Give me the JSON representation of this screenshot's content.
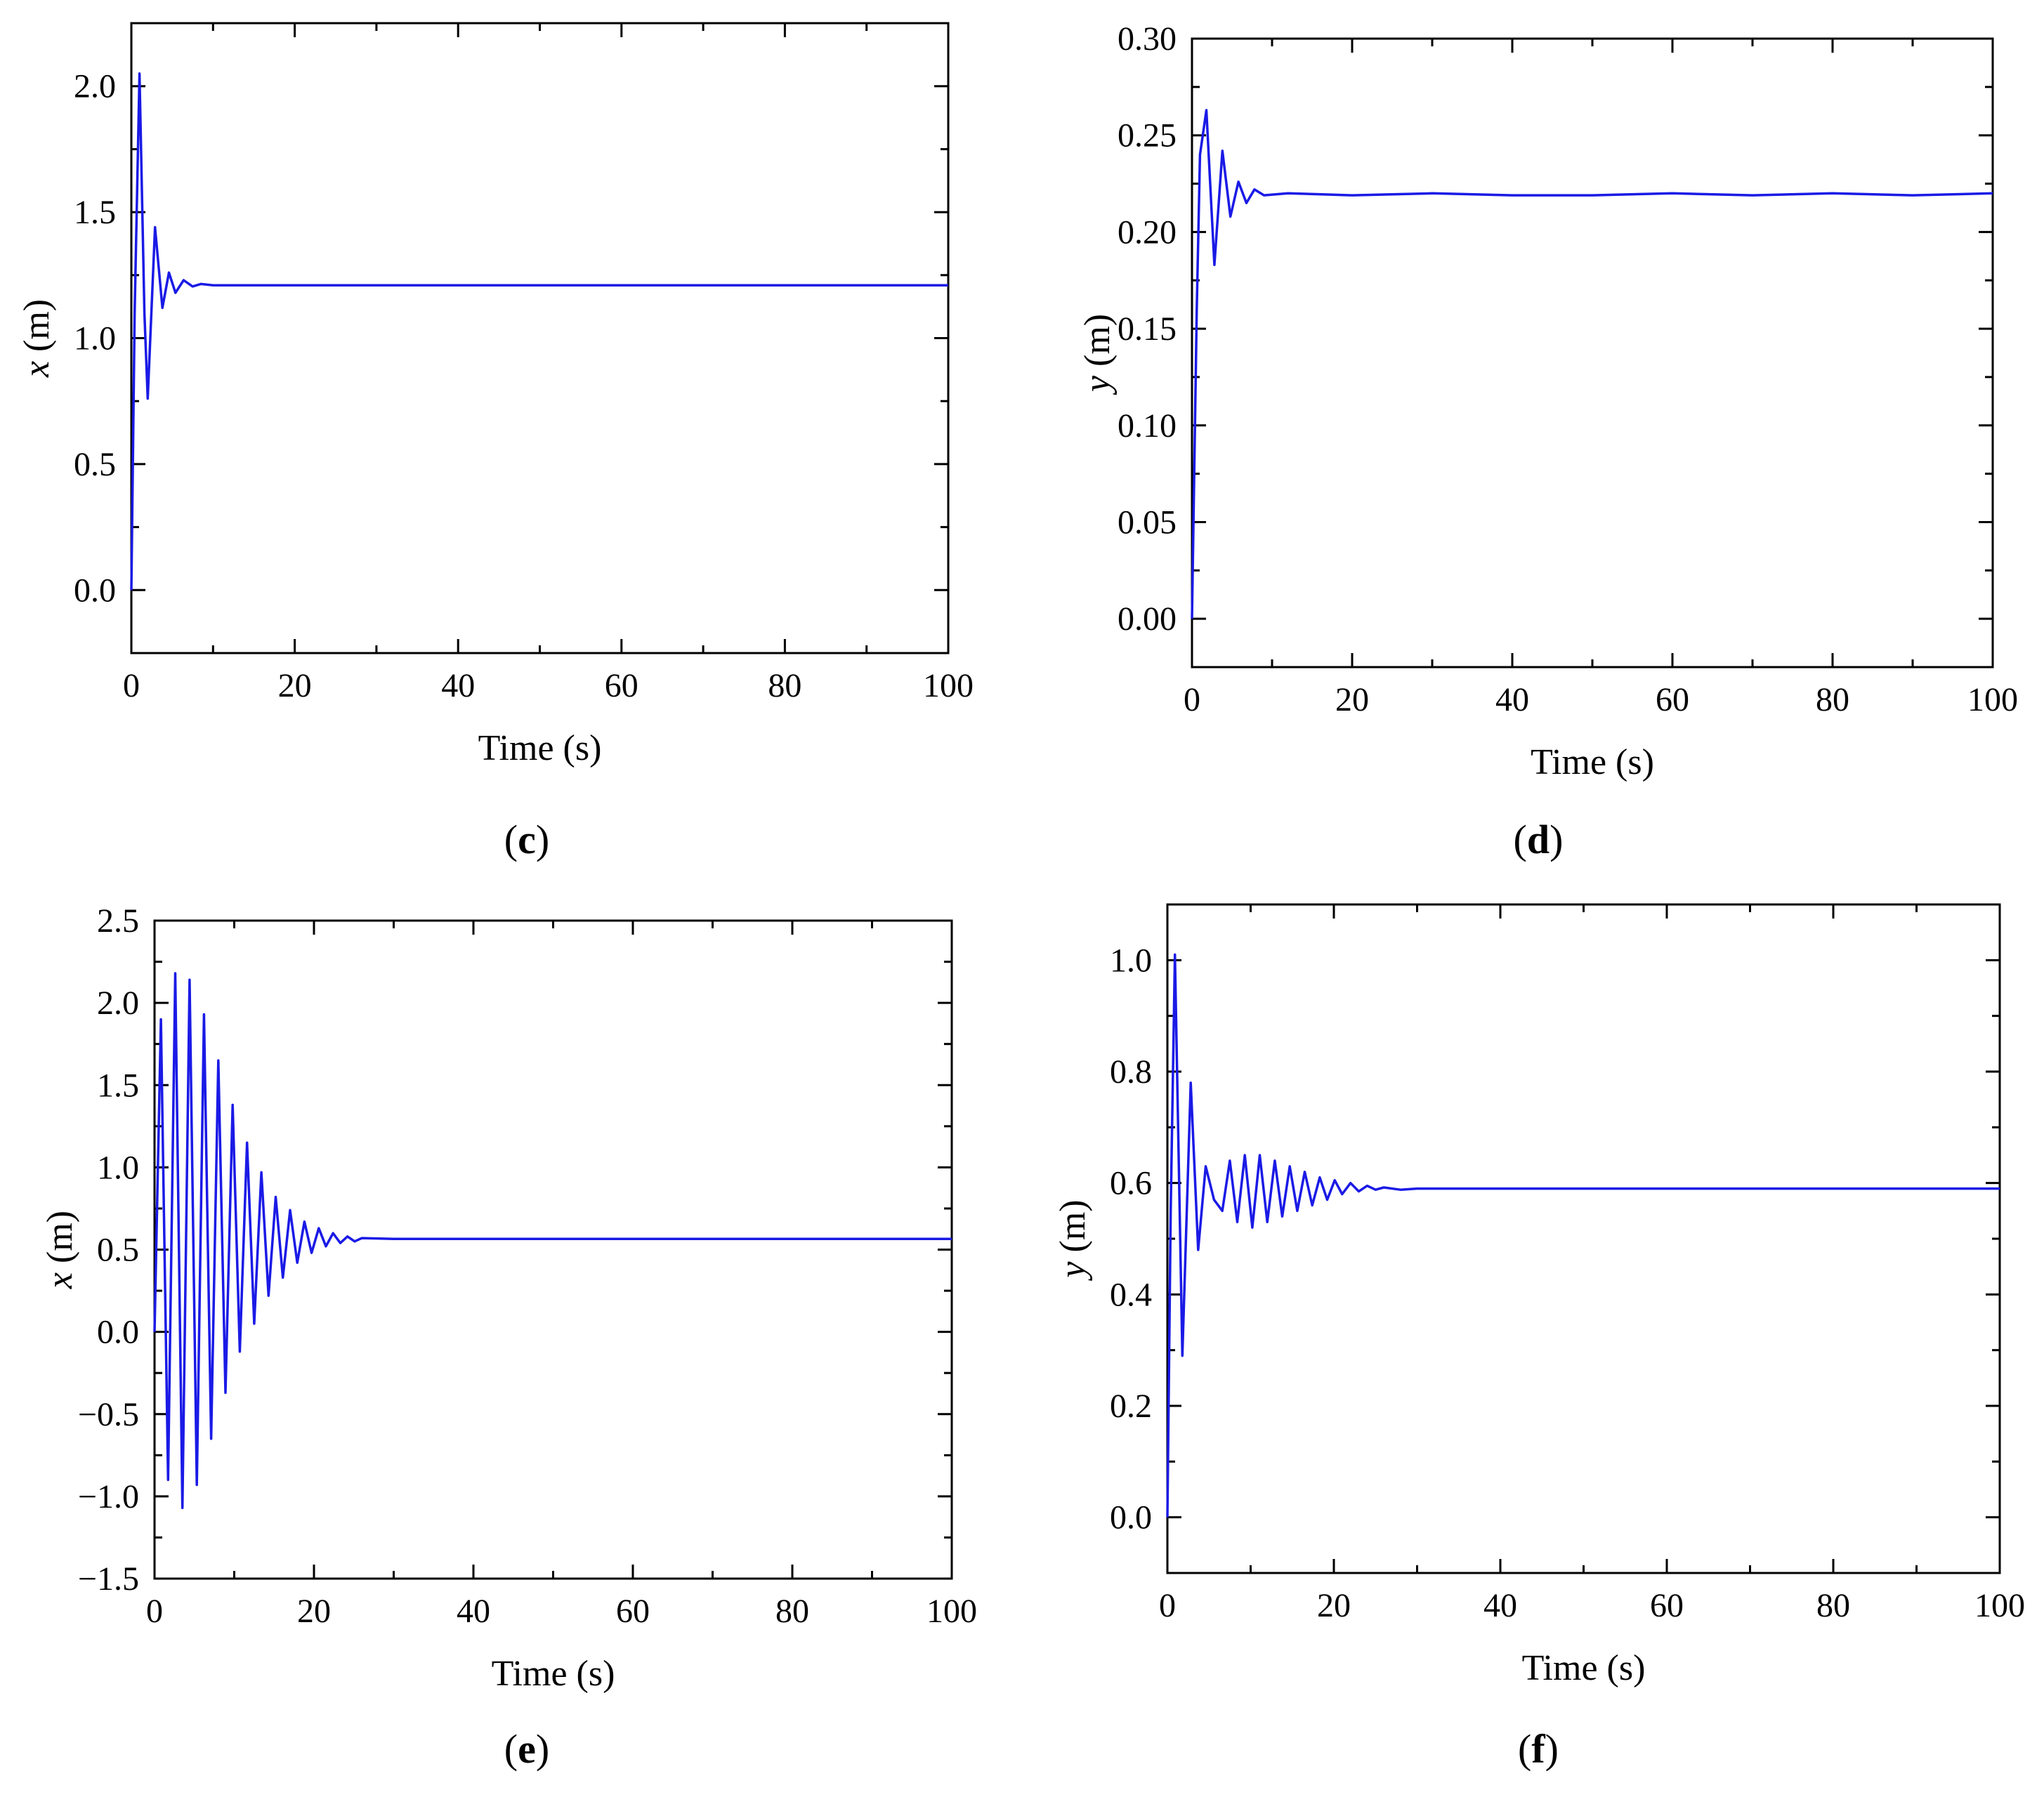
{
  "line_color": "#1a1ae6",
  "chart_data": [
    {
      "id": "c",
      "type": "line",
      "panel_label": "c",
      "xlabel": "Time  (s)",
      "ylabel_var": "x",
      "ylabel_unit": " (m)",
      "xlim": [
        0,
        100
      ],
      "ylim": [
        -0.25,
        2.25
      ],
      "xticks": [
        0,
        20,
        40,
        60,
        80,
        100
      ],
      "xticklabels": [
        "0",
        "20",
        "40",
        "60",
        "80",
        "100"
      ],
      "yticks": [
        0.0,
        0.5,
        1.0,
        1.5,
        2.0
      ],
      "yticklabels": [
        "0.0",
        "0.5",
        "1.0",
        "1.5",
        "2.0"
      ],
      "grid": false,
      "series": [
        {
          "x": [
            0,
            0.4,
            1.0,
            1.6,
            2.0,
            2.9,
            3.8,
            4.6,
            5.4,
            6.4,
            7.5,
            8.5,
            10,
            20,
            30,
            40,
            50,
            60,
            70,
            80,
            90,
            100
          ],
          "values": [
            0,
            1.1,
            2.05,
            1.1,
            0.76,
            1.44,
            1.12,
            1.26,
            1.18,
            1.23,
            1.205,
            1.215,
            1.21,
            1.21,
            1.21,
            1.21,
            1.21,
            1.21,
            1.21,
            1.21,
            1.21,
            1.21
          ]
        }
      ]
    },
    {
      "id": "d",
      "type": "line",
      "panel_label": "d",
      "xlabel": "Time  (s)",
      "ylabel_var": "y",
      "ylabel_unit": " (m)",
      "xlim": [
        0,
        100
      ],
      "ylim": [
        -0.025,
        0.3
      ],
      "xticks": [
        0,
        20,
        40,
        60,
        80,
        100
      ],
      "xticklabels": [
        "0",
        "20",
        "40",
        "60",
        "80",
        "100"
      ],
      "yticks": [
        0.0,
        0.05,
        0.1,
        0.15,
        0.2,
        0.25,
        0.3
      ],
      "yticklabels": [
        "0.00",
        "0.05",
        "0.10",
        "0.15",
        "0.20",
        "0.25",
        "0.30"
      ],
      "grid": false,
      "series": [
        {
          "x": [
            0,
            0.6,
            1.0,
            1.8,
            2.8,
            3.8,
            4.8,
            5.8,
            6.8,
            7.8,
            9,
            12,
            20,
            30,
            40,
            50,
            60,
            70,
            80,
            90,
            100
          ],
          "values": [
            0,
            0.16,
            0.24,
            0.263,
            0.183,
            0.242,
            0.208,
            0.226,
            0.215,
            0.222,
            0.219,
            0.22,
            0.219,
            0.22,
            0.219,
            0.219,
            0.22,
            0.219,
            0.22,
            0.219,
            0.22
          ]
        }
      ]
    },
    {
      "id": "e",
      "type": "line",
      "panel_label": "e",
      "xlabel": "Time  (s)",
      "ylabel_var": "x",
      "ylabel_unit": " (m)",
      "xlim": [
        0,
        100
      ],
      "ylim": [
        -1.5,
        2.5
      ],
      "xticks": [
        0,
        20,
        40,
        60,
        80,
        100
      ],
      "xticklabels": [
        "0",
        "20",
        "40",
        "60",
        "80",
        "100"
      ],
      "yticks": [
        -1.5,
        -1.0,
        -0.5,
        0.0,
        0.5,
        1.0,
        1.5,
        2.0,
        2.5
      ],
      "yticklabels": [
        "−1.5",
        "−1.0",
        "−0.5",
        "0.0",
        "0.5",
        "1.0",
        "1.5",
        "2.0",
        "2.5"
      ],
      "grid": false,
      "series": [
        {
          "x": [
            0,
            0.8,
            1.7,
            2.6,
            3.5,
            4.4,
            5.3,
            6.2,
            7.1,
            8.0,
            8.9,
            9.8,
            10.7,
            11.6,
            12.5,
            13.4,
            14.3,
            15.2,
            16.1,
            17.0,
            17.9,
            18.8,
            19.7,
            20.6,
            21.5,
            22.4,
            23.3,
            24.2,
            25.1,
            26,
            30,
            40,
            50,
            60,
            70,
            80,
            90,
            100
          ],
          "values": [
            0,
            1.9,
            -0.9,
            2.18,
            -1.07,
            2.14,
            -0.93,
            1.93,
            -0.65,
            1.65,
            -0.37,
            1.38,
            -0.12,
            1.15,
            0.05,
            0.97,
            0.22,
            0.82,
            0.33,
            0.74,
            0.42,
            0.67,
            0.48,
            0.63,
            0.52,
            0.6,
            0.54,
            0.58,
            0.55,
            0.57,
            0.565,
            0.565,
            0.565,
            0.565,
            0.565,
            0.565,
            0.565,
            0.565
          ]
        }
      ]
    },
    {
      "id": "f",
      "type": "line",
      "panel_label": "f",
      "xlabel": "Time  (s)",
      "ylabel_var": "y",
      "ylabel_unit": " (m)",
      "xlim": [
        0,
        100
      ],
      "ylim": [
        -0.1,
        1.1
      ],
      "xticks": [
        0,
        20,
        40,
        60,
        80,
        100
      ],
      "xticklabels": [
        "0",
        "20",
        "40",
        "60",
        "80",
        "100"
      ],
      "yticks": [
        0.0,
        0.2,
        0.4,
        0.6,
        0.8,
        1.0
      ],
      "yticklabels": [
        "0.0",
        "0.2",
        "0.4",
        "0.6",
        "0.8",
        "1.0"
      ],
      "grid": false,
      "series": [
        {
          "x": [
            0,
            0.4,
            0.9,
            1.8,
            2.8,
            3.7,
            4.6,
            5.6,
            6.6,
            7.5,
            8.4,
            9.3,
            10.2,
            11.1,
            12.0,
            12.9,
            13.8,
            14.7,
            15.6,
            16.5,
            17.4,
            18.3,
            19.2,
            20.1,
            21,
            22,
            23,
            24,
            25,
            26,
            28,
            30,
            40,
            50,
            60,
            70,
            80,
            90,
            100
          ],
          "values": [
            0,
            0.55,
            1.01,
            0.29,
            0.78,
            0.48,
            0.63,
            0.57,
            0.55,
            0.64,
            0.53,
            0.65,
            0.52,
            0.65,
            0.53,
            0.64,
            0.54,
            0.63,
            0.55,
            0.62,
            0.56,
            0.61,
            0.57,
            0.605,
            0.58,
            0.6,
            0.585,
            0.595,
            0.588,
            0.592,
            0.588,
            0.59,
            0.59,
            0.59,
            0.59,
            0.59,
            0.59,
            0.59,
            0.59
          ]
        }
      ]
    }
  ]
}
